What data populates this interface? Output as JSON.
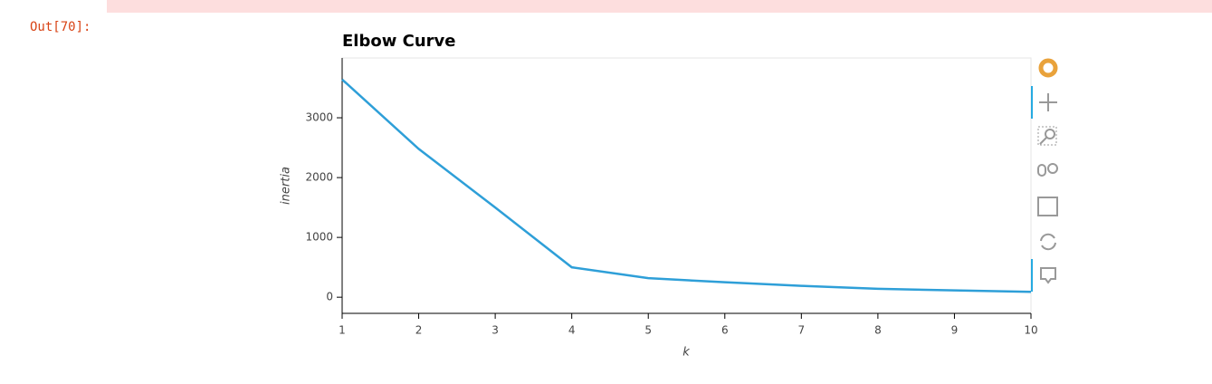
{
  "prompt": "Out[70]:",
  "chart_data": {
    "type": "line",
    "title": "Elbow Curve",
    "x_label": "k",
    "y_label": "inertia",
    "x": [
      1,
      2,
      3,
      4,
      5,
      6,
      7,
      8,
      9,
      10
    ],
    "series": [
      {
        "color": "#2e9fd8",
        "values": [
          3640,
          2480,
          1500,
          500,
          318,
          250,
          190,
          140,
          115,
          90
        ]
      }
    ],
    "xlim": [
      1,
      10
    ],
    "xticks": [
      1,
      2,
      3,
      4,
      5,
      6,
      7,
      8,
      9,
      10
    ],
    "ylim": [
      -270,
      4000
    ],
    "yticks": [
      0,
      1000,
      2000,
      3000
    ],
    "grid": false
  }
}
